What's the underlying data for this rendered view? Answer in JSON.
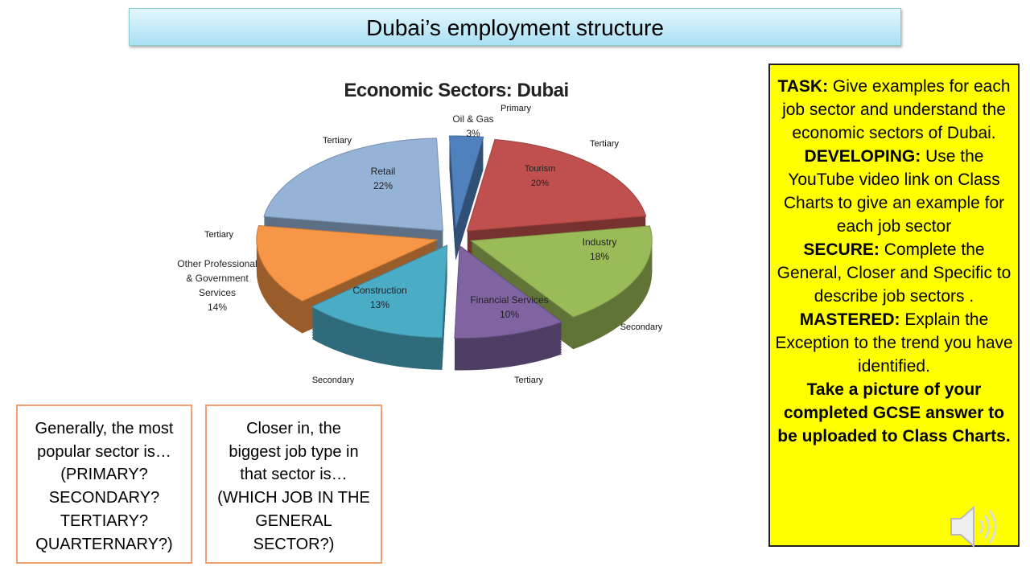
{
  "title": "Dubai’s employment structure",
  "chart_data": {
    "type": "pie",
    "title": "Economic Sectors: Dubai",
    "categories": [
      "Oil & Gas",
      "Tourism",
      "Industry",
      "Financial Services",
      "Construction",
      "Other Professional & Government Services",
      "Retail"
    ],
    "values": [
      3,
      20,
      18,
      10,
      13,
      14,
      22
    ],
    "value_labels": [
      "3%",
      "20%",
      "18%",
      "10%",
      "13%",
      "14%",
      "22%"
    ],
    "colors": [
      "#4f81bd",
      "#c0504d",
      "#9bbb59",
      "#8064a2",
      "#4bacc6",
      "#f79646",
      "#95b3d7"
    ],
    "annotations": [
      "Primary",
      "Tertiary",
      "Secondary",
      "Tertiary",
      "Secondary",
      "Tertiary",
      "Tertiary"
    ]
  },
  "boxes": [
    {
      "lines": [
        "Generally, the most",
        "popular sector is…",
        "(PRIMARY?",
        "SECONDARY?",
        "TERTIARY?",
        "QUARTERNARY?)"
      ]
    },
    {
      "lines": [
        "Closer in, the",
        "biggest job type in",
        "that sector is…",
        "(WHICH JOB IN THE",
        "GENERAL",
        "SECTOR?)"
      ]
    }
  ],
  "task": {
    "items": [
      {
        "label": "TASK:",
        "text": " Give examples for each job sector and understand the economic sectors of Dubai."
      },
      {
        "label": "DEVELOPING:",
        "text": " Use the YouTube video link on Class Charts to give an example for each job sector"
      },
      {
        "label": "SECURE:",
        "text": " Complete the General, Closer and Specific to describe job sectors ."
      },
      {
        "label": "MASTERED:",
        "text": " Explain the Exception to the trend you have identified."
      }
    ],
    "closing": "Take a picture of your completed GCSE answer to be uploaded to Class Charts."
  }
}
